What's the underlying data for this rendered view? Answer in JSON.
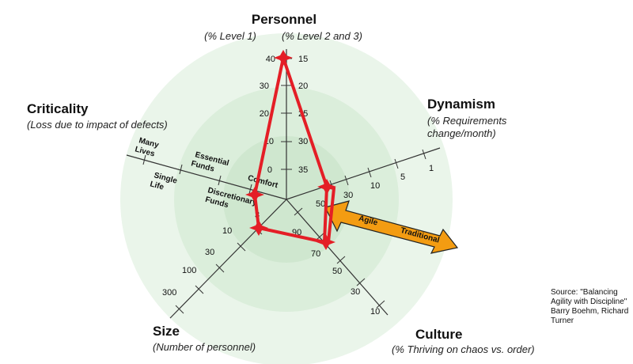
{
  "axes": {
    "personnel": {
      "title": "Personnel",
      "sub_left": "(% Level 1)",
      "sub_right": "(% Level 2 and 3)",
      "ticks_left": [
        "40",
        "30",
        "20",
        "10",
        "0"
      ],
      "ticks_right": [
        "15",
        "20",
        "25",
        "30",
        "35"
      ]
    },
    "dynamism": {
      "title": "Dynamism",
      "sub_line1": "(% Requirements",
      "sub_line2": "change/month)",
      "ticks": [
        "50",
        "30",
        "10",
        "5",
        "1"
      ]
    },
    "culture": {
      "title": "Culture",
      "sub": "(% Thriving on chaos vs. order)",
      "ticks": [
        "90",
        "70",
        "50",
        "30",
        "10"
      ]
    },
    "size": {
      "title": "Size",
      "sub": "(Number of personnel)",
      "ticks": [
        "3",
        "10",
        "30",
        "100",
        "300"
      ]
    },
    "criticality": {
      "title": "Criticality",
      "sub": "(Loss due to impact of defects)",
      "labels": {
        "comfort": "Comfort",
        "discretionary_1": "Discretionary",
        "discretionary_2": "Funds",
        "essential_1": "Essential",
        "essential_2": "Funds",
        "single_1": "Single",
        "single_2": "Life",
        "many_1": "Many",
        "many_2": "Lives"
      }
    }
  },
  "arrow": {
    "agile": "Agile",
    "traditional": "Traditional",
    "color": "#f39c12"
  },
  "profile_color": "#e41e26",
  "source": "Source: \"Balancing Agility with Discipline\" Barry Boehm, Richard Turner"
}
